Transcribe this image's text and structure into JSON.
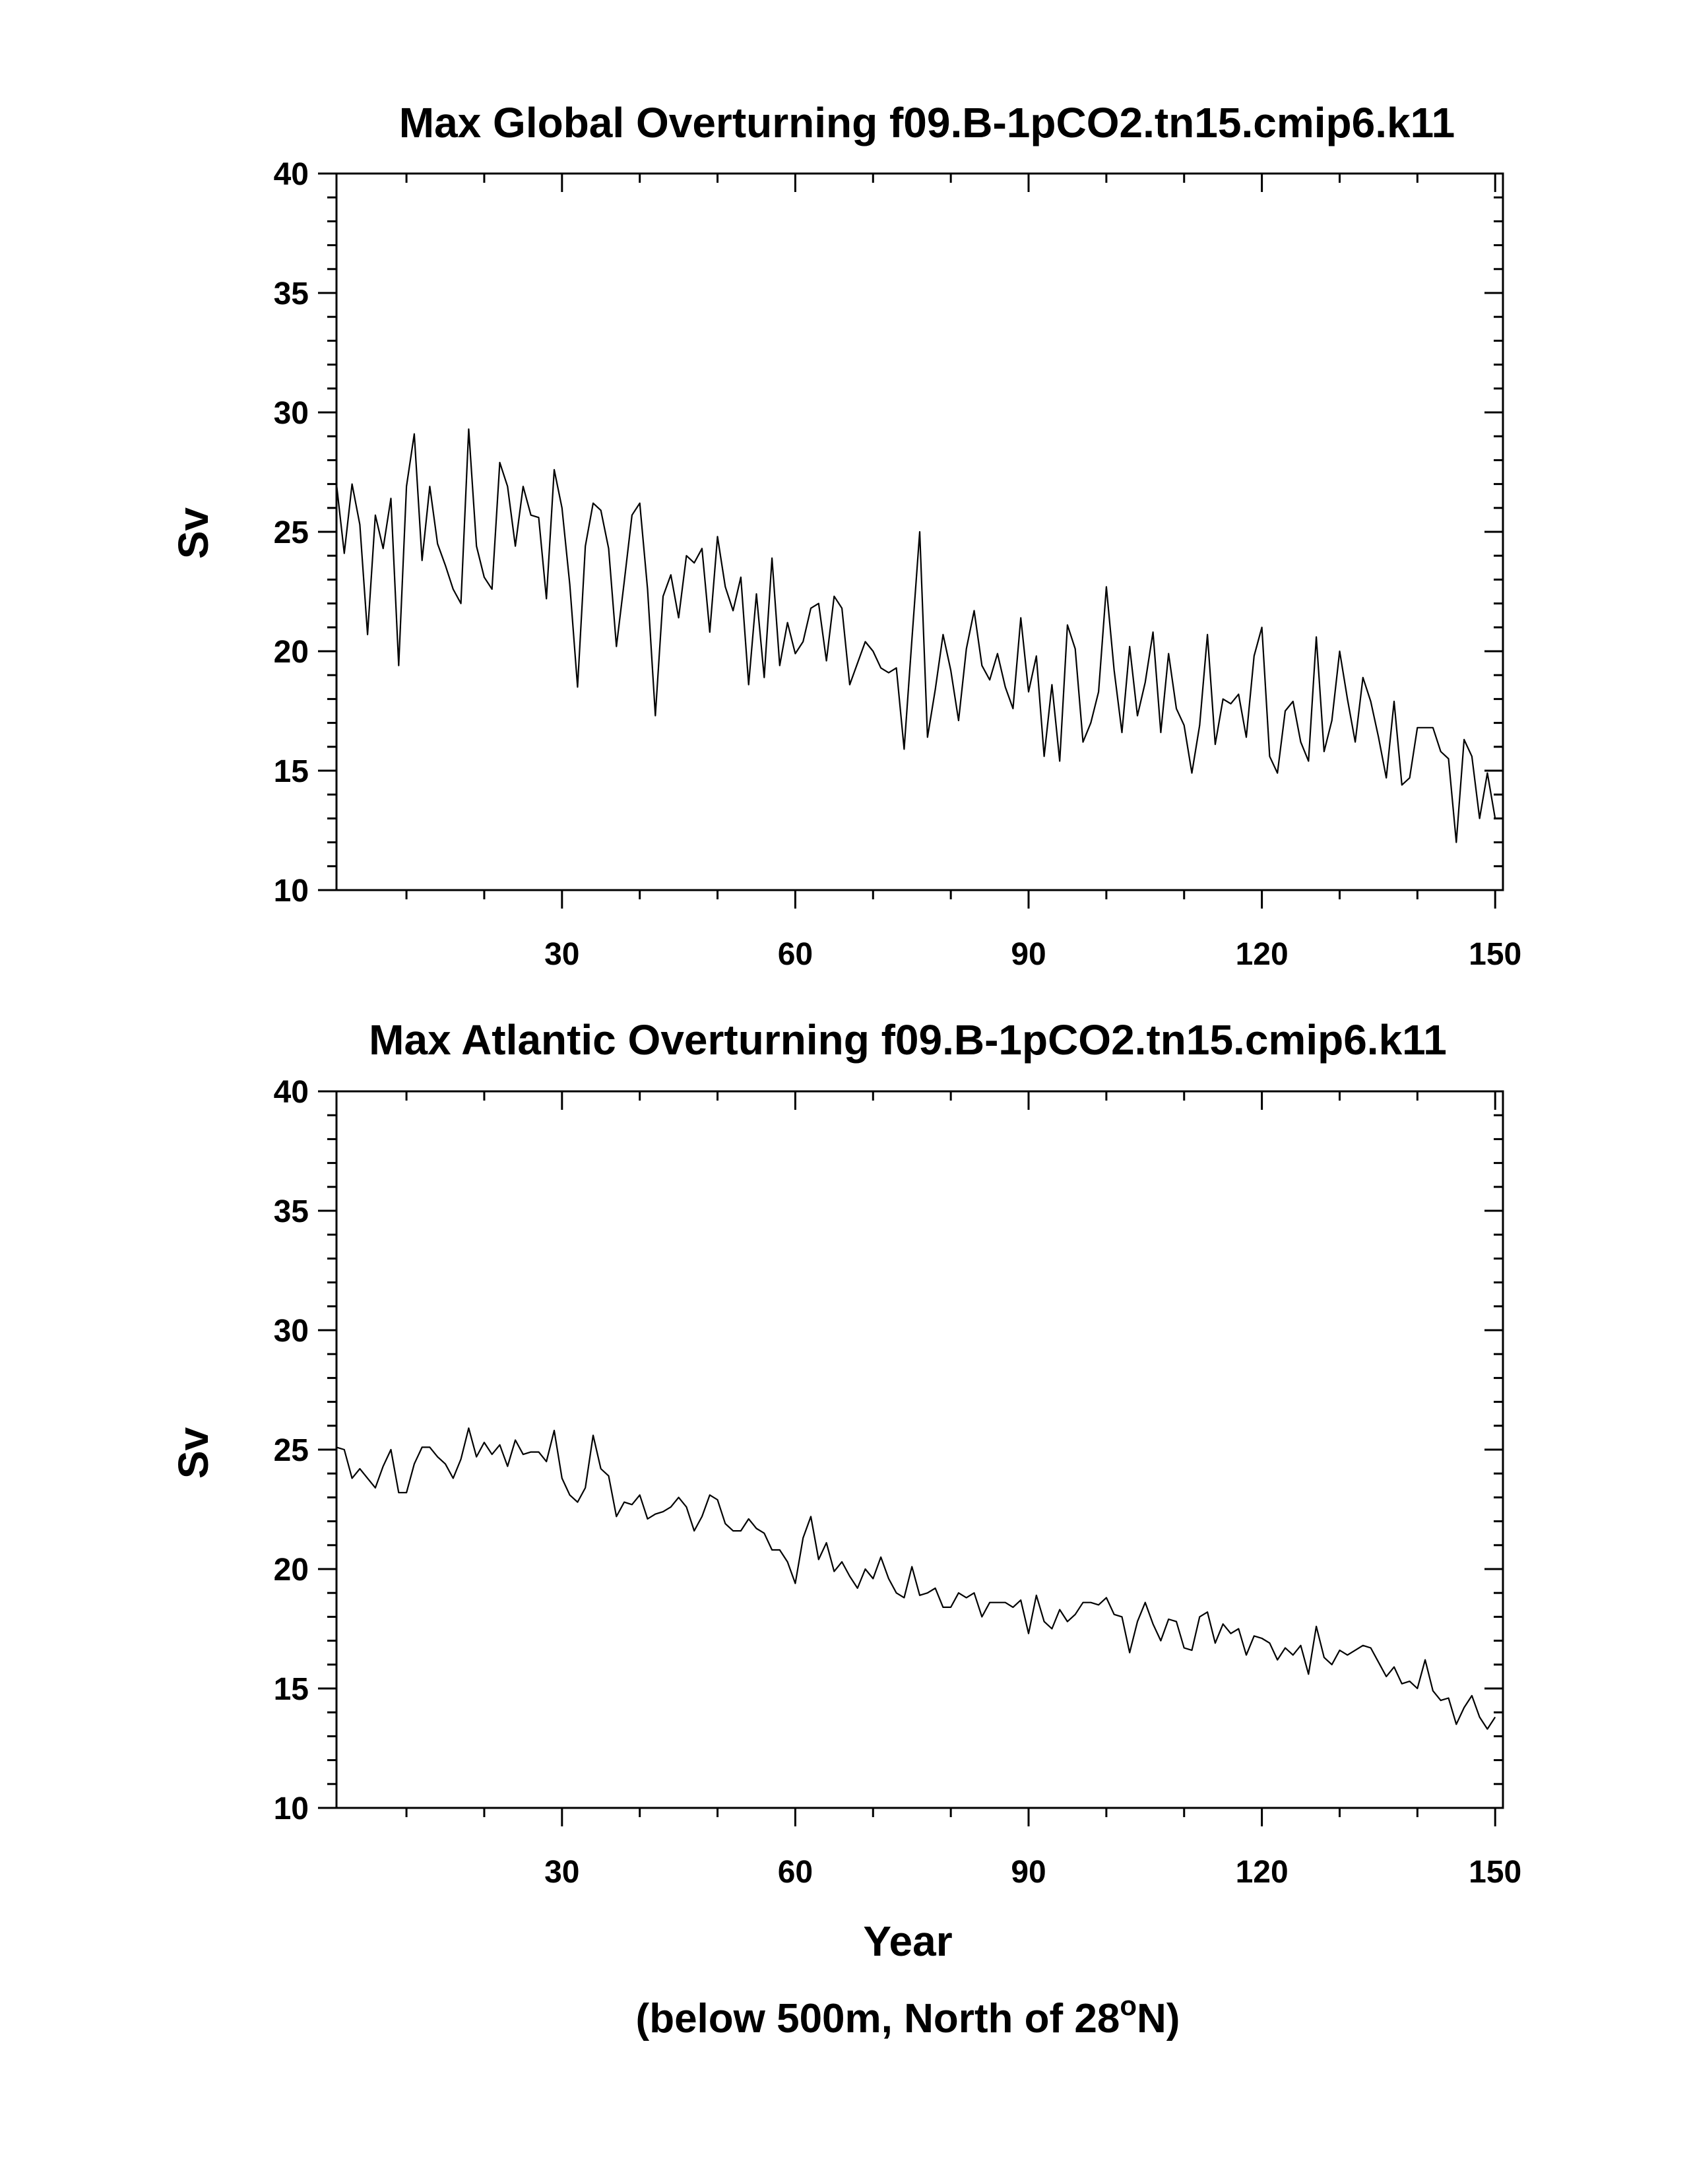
{
  "chart_data": [
    {
      "type": "line",
      "title": "Max Global Overturning f09.B-1pCO2.tn15.cmip6.k11",
      "ylabel": "Sv",
      "xlabel": "",
      "xlim": [
        1,
        151
      ],
      "ylim": [
        10,
        40
      ],
      "xticks": [
        30,
        60,
        90,
        120,
        150
      ],
      "yticks": [
        10,
        15,
        20,
        25,
        30,
        35,
        40
      ],
      "grid": false,
      "series": [
        {
          "values": [
            27.0,
            24.1,
            27.0,
            25.3,
            20.7,
            25.7,
            24.3,
            26.4,
            19.4,
            26.9,
            29.1,
            23.8,
            26.9,
            24.5,
            23.6,
            22.6,
            22.0,
            29.3,
            24.4,
            23.1,
            22.6,
            27.9,
            26.9,
            24.4,
            26.9,
            25.7,
            25.6,
            22.2,
            27.6,
            26.0,
            22.8,
            18.5,
            24.4,
            26.2,
            25.9,
            24.3,
            20.2,
            22.9,
            25.7,
            26.2,
            22.6,
            17.3,
            22.3,
            23.2,
            21.4,
            24.0,
            23.7,
            24.3,
            20.8,
            24.8,
            22.7,
            21.7,
            23.1,
            18.6,
            22.4,
            18.9,
            23.9,
            19.4,
            21.2,
            19.9,
            20.4,
            21.8,
            22.0,
            19.6,
            22.3,
            21.8,
            18.6,
            19.5,
            20.4,
            20.0,
            19.3,
            19.1,
            19.3,
            15.9,
            20.5,
            25.0,
            16.4,
            18.4,
            20.7,
            19.2,
            17.1,
            20.1,
            21.7,
            19.4,
            18.8,
            19.9,
            18.5,
            17.6,
            21.4,
            18.3,
            19.8,
            15.6,
            18.6,
            15.4,
            21.1,
            20.1,
            16.2,
            17.0,
            18.3,
            22.7,
            19.2,
            16.6,
            20.2,
            17.3,
            18.7,
            20.8,
            16.6,
            19.9,
            17.6,
            16.9,
            14.9,
            16.9,
            20.7,
            16.1,
            18.0,
            17.8,
            18.2,
            16.4,
            19.8,
            21.0,
            15.6,
            14.9,
            17.5,
            17.9,
            16.2,
            15.4,
            20.6,
            15.8,
            17.1,
            20.0,
            18.0,
            16.2,
            18.9,
            17.9,
            16.4,
            14.7,
            17.9,
            14.4,
            14.7,
            16.8,
            16.8,
            16.8,
            15.8,
            15.5,
            12.0,
            16.3,
            15.6,
            13.0,
            14.9,
            13.0
          ]
        }
      ]
    },
    {
      "type": "line",
      "title": "Max Atlantic Overturning f09.B-1pCO2.tn15.cmip6.k11",
      "ylabel": "Sv",
      "xlabel": "Year",
      "xlim": [
        1,
        151
      ],
      "ylim": [
        10,
        40
      ],
      "xticks": [
        30,
        60,
        90,
        120,
        150
      ],
      "yticks": [
        10,
        15,
        20,
        25,
        30,
        35,
        40
      ],
      "grid": false,
      "series": [
        {
          "values": [
            25.1,
            25.0,
            23.8,
            24.2,
            23.8,
            23.4,
            24.3,
            25.0,
            23.2,
            23.2,
            24.4,
            25.1,
            25.1,
            24.7,
            24.4,
            23.8,
            24.6,
            25.9,
            24.7,
            25.3,
            24.8,
            25.2,
            24.3,
            25.4,
            24.8,
            24.9,
            24.9,
            24.5,
            25.8,
            23.8,
            23.1,
            22.8,
            23.4,
            25.6,
            24.2,
            23.9,
            22.2,
            22.8,
            22.7,
            23.1,
            22.1,
            22.3,
            22.4,
            22.6,
            23.0,
            22.6,
            21.6,
            22.2,
            23.1,
            22.9,
            21.9,
            21.6,
            21.6,
            22.1,
            21.7,
            21.5,
            20.8,
            20.8,
            20.3,
            19.4,
            21.3,
            22.2,
            20.4,
            21.1,
            19.9,
            20.3,
            19.7,
            19.2,
            20.0,
            19.6,
            20.5,
            19.6,
            19.0,
            18.8,
            20.1,
            18.9,
            19.0,
            19.2,
            18.4,
            18.4,
            19.0,
            18.8,
            19.0,
            18.0,
            18.6,
            18.6,
            18.6,
            18.4,
            18.7,
            17.3,
            18.9,
            17.8,
            17.5,
            18.3,
            17.8,
            18.1,
            18.6,
            18.6,
            18.5,
            18.8,
            18.1,
            18.0,
            16.5,
            17.8,
            18.6,
            17.7,
            17.0,
            17.9,
            17.8,
            16.7,
            16.6,
            18.0,
            18.2,
            16.9,
            17.7,
            17.3,
            17.5,
            16.4,
            17.2,
            17.1,
            16.9,
            16.2,
            16.7,
            16.4,
            16.8,
            15.6,
            17.6,
            16.3,
            16.0,
            16.6,
            16.4,
            16.6,
            16.8,
            16.7,
            16.1,
            15.5,
            15.9,
            15.2,
            15.3,
            15.0,
            16.2,
            14.9,
            14.5,
            14.6,
            13.5,
            14.2,
            14.7,
            13.8,
            13.3,
            13.8
          ]
        }
      ]
    }
  ],
  "footnote": {
    "text_before": "(below 500m, North of 28",
    "superscript": "o",
    "text_after": "N)"
  }
}
